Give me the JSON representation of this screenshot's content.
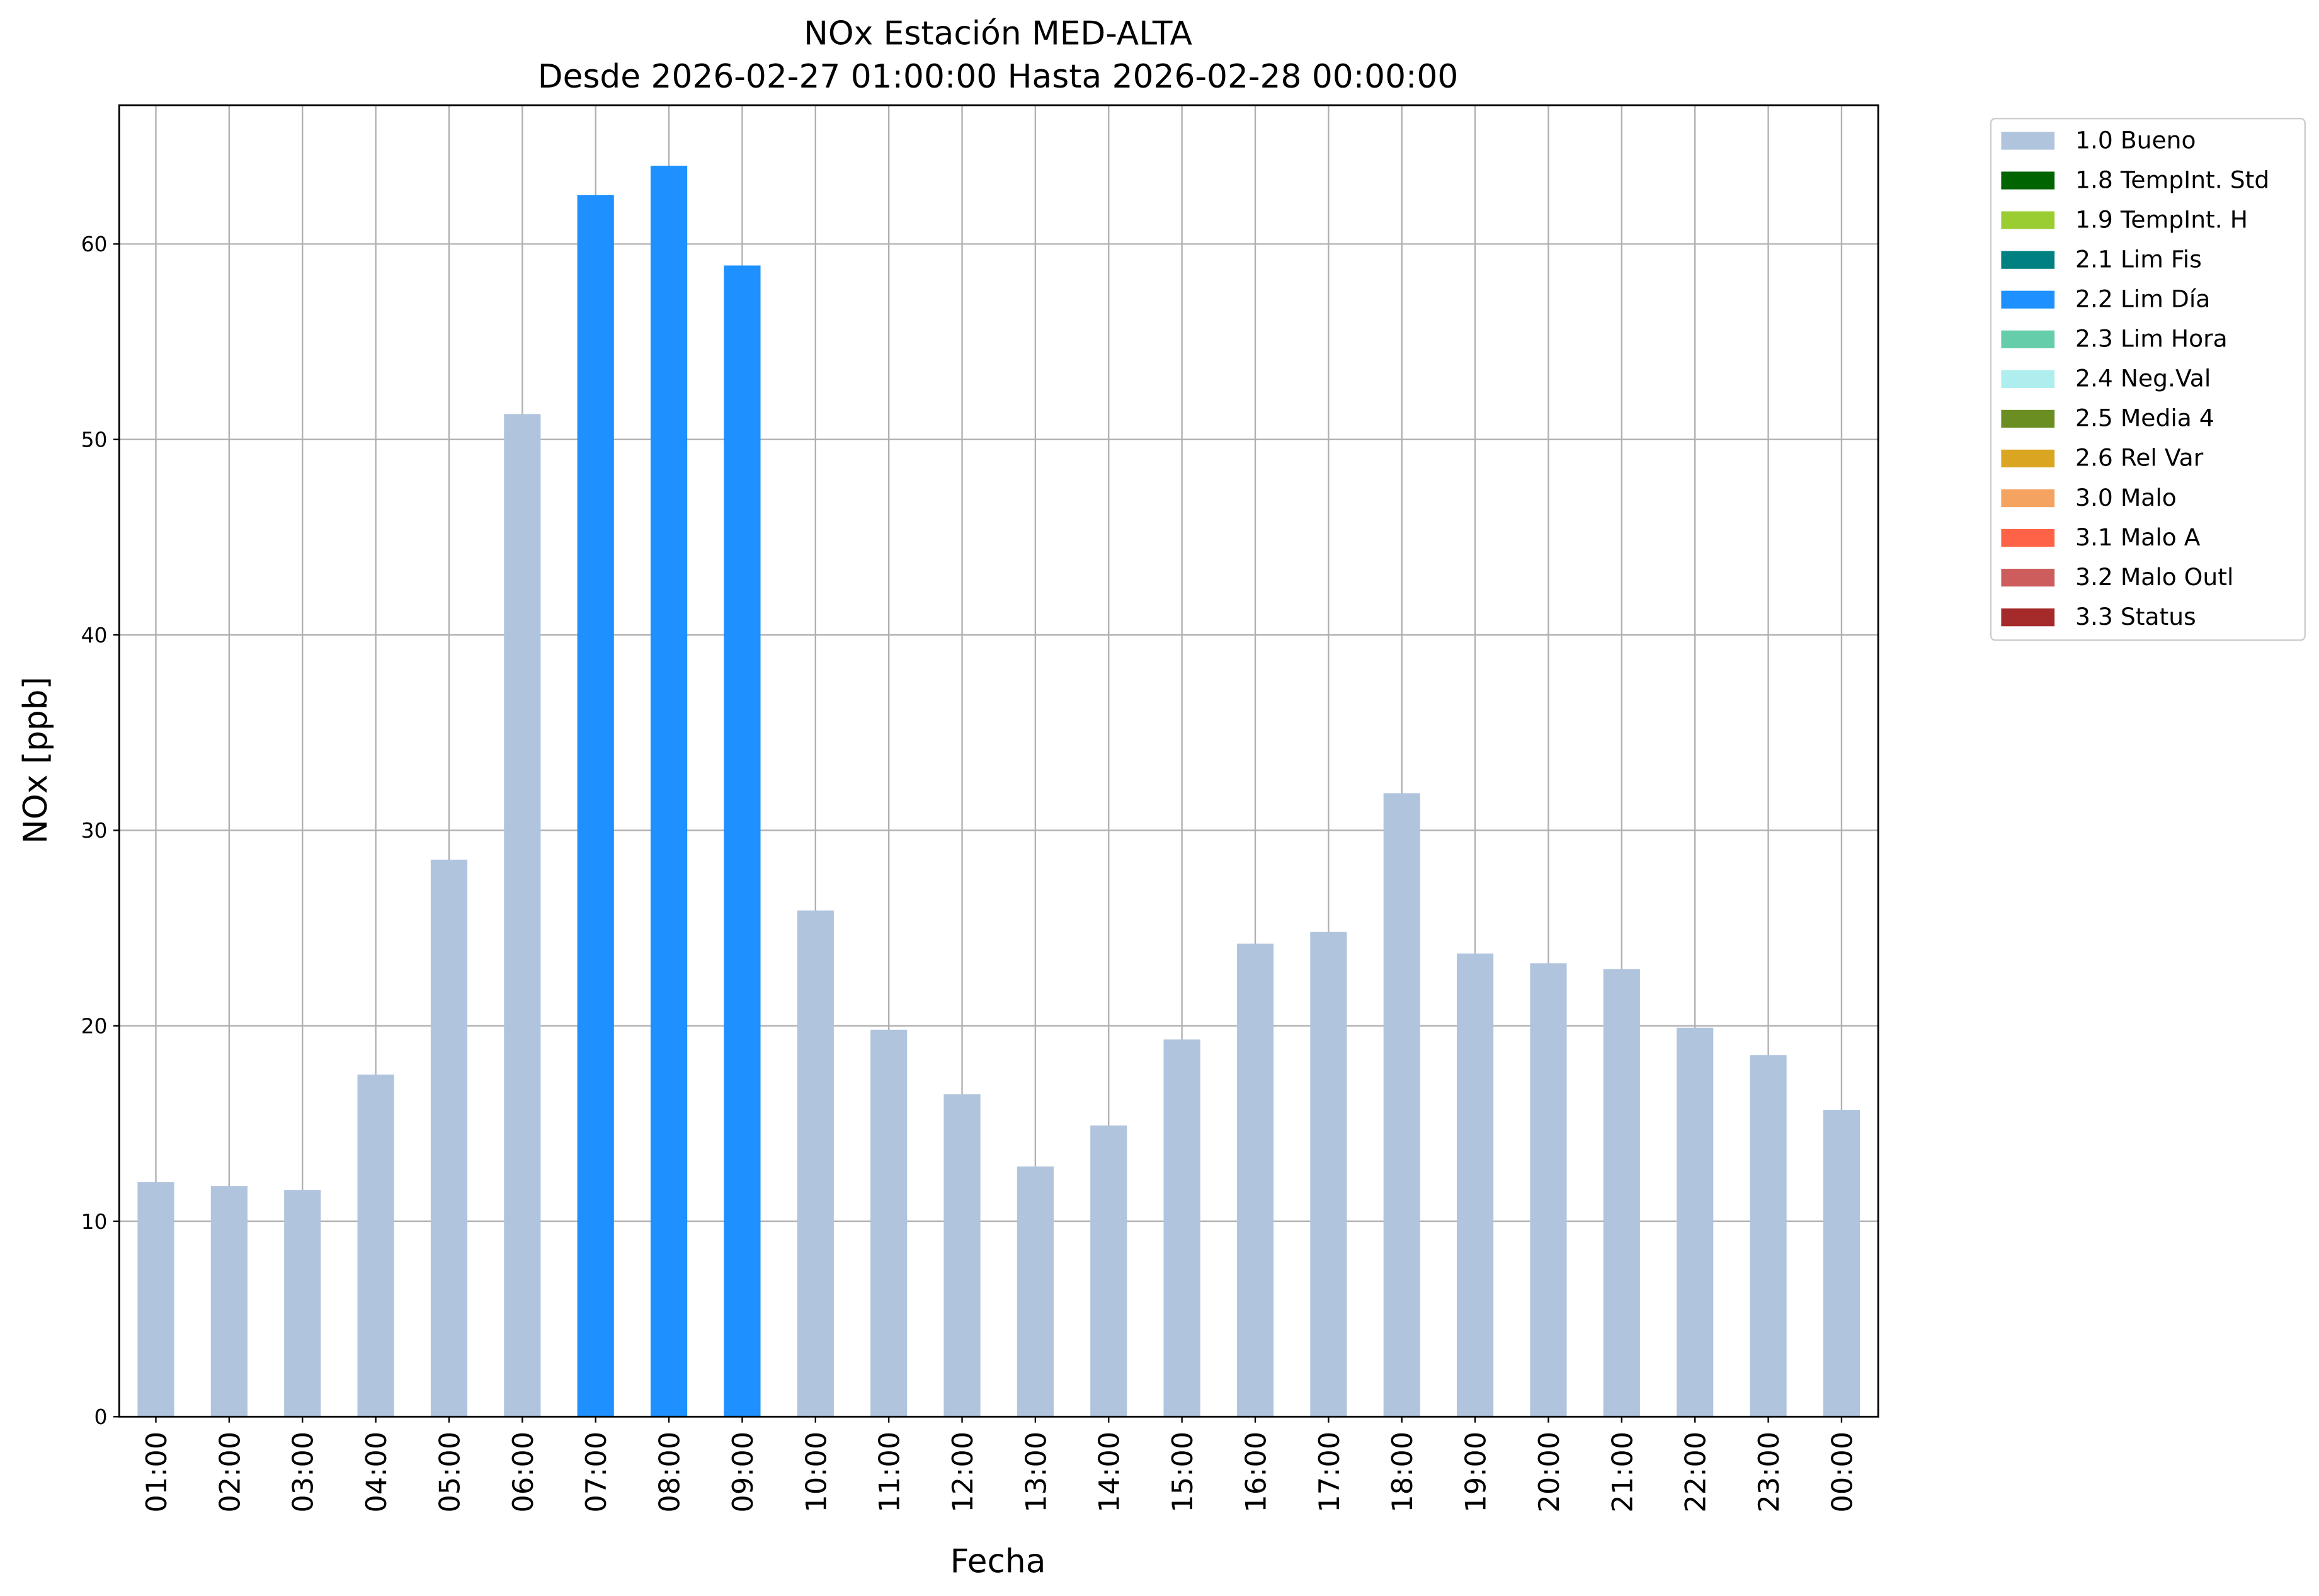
{
  "chart_data": {
    "type": "bar",
    "stacked": true,
    "title": "NOx Estación MED-ALTA",
    "subtitle": "Desde 2026-02-27 01:00:00 Hasta 2026-02-28 00:00:00",
    "x_label": "Fecha",
    "y_label": "NOx [ppb]",
    "categories": [
      "01:00",
      "02:00",
      "03:00",
      "04:00",
      "05:00",
      "06:00",
      "07:00",
      "08:00",
      "09:00",
      "10:00",
      "11:00",
      "12:00",
      "13:00",
      "14:00",
      "15:00",
      "16:00",
      "17:00",
      "18:00",
      "19:00",
      "20:00",
      "21:00",
      "22:00",
      "23:00",
      "00:00"
    ],
    "series": [
      {
        "name": "1.0 Bueno",
        "color": "#b0c4de",
        "values": [
          12.0,
          11.8,
          11.6,
          17.5,
          28.5,
          51.3,
          null,
          null,
          null,
          25.9,
          19.8,
          16.5,
          12.8,
          14.9,
          19.3,
          24.2,
          24.8,
          31.9,
          23.7,
          23.2,
          22.9,
          19.9,
          18.5,
          15.7
        ]
      },
      {
        "name": "1.8 TempInt. Std",
        "color": "#006400",
        "values": [
          null,
          null,
          null,
          null,
          null,
          null,
          null,
          null,
          null,
          null,
          null,
          null,
          null,
          null,
          null,
          null,
          null,
          null,
          null,
          null,
          null,
          null,
          null,
          null
        ]
      },
      {
        "name": "1.9 TempInt. H",
        "color": "#9acd32",
        "values": [
          null,
          null,
          null,
          null,
          null,
          null,
          null,
          null,
          null,
          null,
          null,
          null,
          null,
          null,
          null,
          null,
          null,
          null,
          null,
          null,
          null,
          null,
          null,
          null
        ]
      },
      {
        "name": "2.1 Lim Fis",
        "color": "#008080",
        "values": [
          null,
          null,
          null,
          null,
          null,
          null,
          null,
          null,
          null,
          null,
          null,
          null,
          null,
          null,
          null,
          null,
          null,
          null,
          null,
          null,
          null,
          null,
          null,
          null
        ]
      },
      {
        "name": "2.2 Lim Día",
        "color": "#1e90ff",
        "values": [
          null,
          null,
          null,
          null,
          null,
          null,
          62.5,
          64.0,
          58.9,
          null,
          null,
          null,
          null,
          null,
          null,
          null,
          null,
          null,
          null,
          null,
          null,
          null,
          null,
          null
        ]
      },
      {
        "name": "2.3 Lim Hora",
        "color": "#66cdaa",
        "values": [
          null,
          null,
          null,
          null,
          null,
          null,
          null,
          null,
          null,
          null,
          null,
          null,
          null,
          null,
          null,
          null,
          null,
          null,
          null,
          null,
          null,
          null,
          null,
          null
        ]
      },
      {
        "name": "2.4 Neg.Val",
        "color": "#afeeee",
        "values": [
          null,
          null,
          null,
          null,
          null,
          null,
          null,
          null,
          null,
          null,
          null,
          null,
          null,
          null,
          null,
          null,
          null,
          null,
          null,
          null,
          null,
          null,
          null,
          null
        ]
      },
      {
        "name": "2.5 Media 4",
        "color": "#6b8e23",
        "values": [
          null,
          null,
          null,
          null,
          null,
          null,
          null,
          null,
          null,
          null,
          null,
          null,
          null,
          null,
          null,
          null,
          null,
          null,
          null,
          null,
          null,
          null,
          null,
          null
        ]
      },
      {
        "name": "2.6 Rel Var",
        "color": "#daa520",
        "values": [
          null,
          null,
          null,
          null,
          null,
          null,
          null,
          null,
          null,
          null,
          null,
          null,
          null,
          null,
          null,
          null,
          null,
          null,
          null,
          null,
          null,
          null,
          null,
          null
        ]
      },
      {
        "name": "3.0 Malo",
        "color": "#f4a460",
        "values": [
          null,
          null,
          null,
          null,
          null,
          null,
          null,
          null,
          null,
          null,
          null,
          null,
          null,
          null,
          null,
          null,
          null,
          null,
          null,
          null,
          null,
          null,
          null,
          null
        ]
      },
      {
        "name": "3.1 Malo A",
        "color": "#ff6347",
        "values": [
          null,
          null,
          null,
          null,
          null,
          null,
          null,
          null,
          null,
          null,
          null,
          null,
          null,
          null,
          null,
          null,
          null,
          null,
          null,
          null,
          null,
          null,
          null,
          null
        ]
      },
      {
        "name": "3.2 Malo Outl",
        "color": "#cd5c5c",
        "values": [
          null,
          null,
          null,
          null,
          null,
          null,
          null,
          null,
          null,
          null,
          null,
          null,
          null,
          null,
          null,
          null,
          null,
          null,
          null,
          null,
          null,
          null,
          null,
          null
        ]
      },
      {
        "name": "3.3 Status",
        "color": "#a52a2a",
        "values": [
          null,
          null,
          null,
          null,
          null,
          null,
          null,
          null,
          null,
          null,
          null,
          null,
          null,
          null,
          null,
          null,
          null,
          null,
          null,
          null,
          null,
          null,
          null,
          null
        ]
      }
    ],
    "ylim": [
      0,
      67.1
    ],
    "yticks": [
      0,
      10,
      20,
      30,
      40,
      50,
      60
    ],
    "grid": true,
    "legend": "outside-upper-right"
  }
}
